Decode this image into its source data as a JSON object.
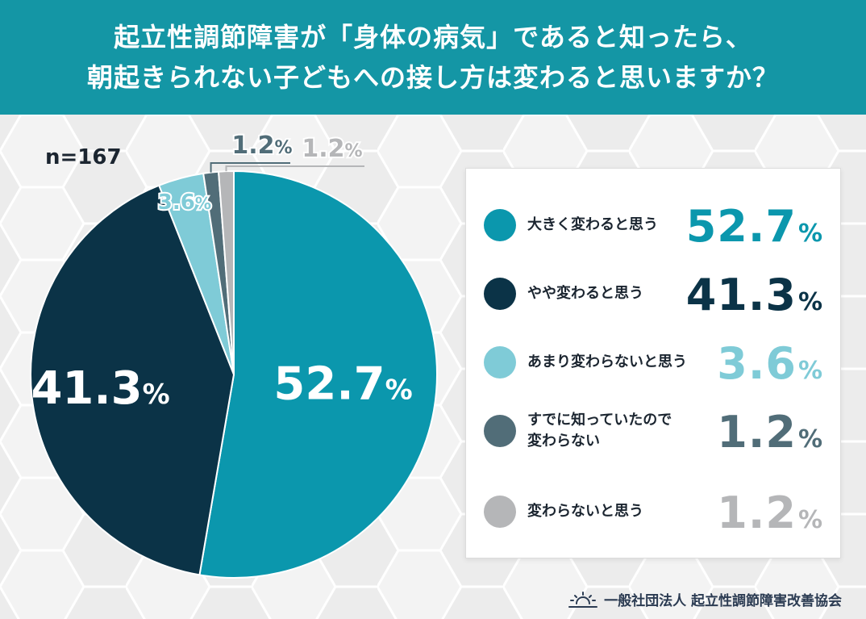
{
  "title": {
    "line1": "起立性調節障害が「身体の病気」であると知ったら、",
    "line2": "朝起きられない子どもへの接し方は変わると思いますか？"
  },
  "sample": "n=167",
  "percent_sign": "%",
  "colors": {
    "header_bg": "#1496a5",
    "series": [
      "#0b97ad",
      "#0b3347",
      "#7fcbd7",
      "#516d78",
      "#b5b6b8"
    ]
  },
  "chart_data": {
    "type": "pie",
    "title": "起立性調節障害が「身体の病気」であると知ったら、朝起きられない子どもへの接し方は変わると思いますか？",
    "n": 167,
    "start": "12 o'clock, clockwise",
    "series": [
      {
        "name": "大きく変わると思う",
        "value": 52.7,
        "label": "52.7"
      },
      {
        "name": "やや変わると思う",
        "value": 41.3,
        "label": "41.3"
      },
      {
        "name": "あまり変わらないと思う",
        "value": 3.6,
        "label": "3.6"
      },
      {
        "name": "すでに知っていたので\n変わらない",
        "value": 1.2,
        "label": "1.2"
      },
      {
        "name": "変わらないと思う",
        "value": 1.2,
        "label": "1.2"
      }
    ]
  },
  "footer": {
    "org": "一般社団法人 起立性調節障害改善協会",
    "logo_icon": "sunrise-icon"
  }
}
